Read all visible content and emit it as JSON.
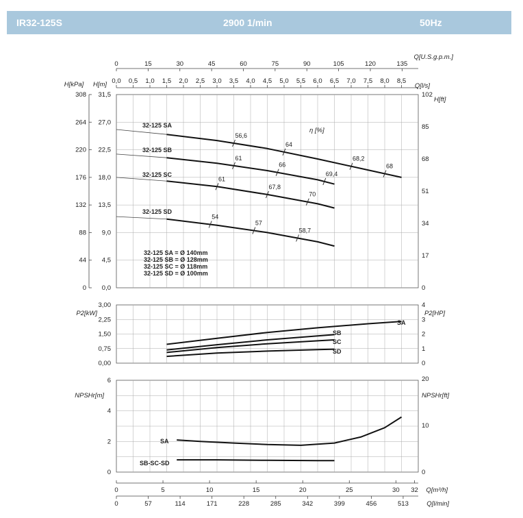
{
  "header": {
    "model": "IR32-125S",
    "speed": "2900 1/min",
    "frequency": "50Hz"
  },
  "chart_data": [
    {
      "type": "line",
      "name": "head",
      "x_unit_label": "Q[l/s]",
      "x_ticks": [
        "0,0",
        "0,5",
        "1,0",
        "1,5",
        "2,0",
        "2,5",
        "3,0",
        "3,5",
        "4,0",
        "4,5",
        "5,0",
        "5,5",
        "6,0",
        "6,5",
        "7,0",
        "7,5",
        "8,0",
        "8,5"
      ],
      "x_ticks_values": [
        0,
        0.5,
        1,
        1.5,
        2,
        2.5,
        3,
        3.5,
        4,
        4.5,
        5,
        5.5,
        6,
        6.5,
        7,
        7.5,
        8,
        8.5
      ],
      "top_unit_label": "Q[U.S.g.p.m.]",
      "top_ticks": [
        "0",
        "15",
        "30",
        "45",
        "60",
        "75",
        "90",
        "105",
        "120",
        "135"
      ],
      "xlim": [
        0,
        9.0
      ],
      "ylabel_left_m": "H[m]",
      "ylabel_left_kpa": "H[kPa]",
      "ylabel_right": "H[ft]",
      "ylim": [
        0,
        31.5
      ],
      "y_ticks_m": [
        "0,0",
        "4,5",
        "9,0",
        "13,5",
        "18,0",
        "22,5",
        "27,0",
        "31,5"
      ],
      "y_ticks_kpa": [
        "0",
        "44",
        "88",
        "132",
        "176",
        "220",
        "264",
        "308"
      ],
      "y_ticks_ft": [
        "0",
        "17",
        "34",
        "51",
        "68",
        "85",
        "102"
      ],
      "efficiency_label": "η [%]",
      "series": [
        {
          "name": "32-125 SA",
          "x": [
            0,
            1.5,
            3,
            4.5,
            6,
            7.5,
            8.5
          ],
          "y": [
            25.8,
            25.0,
            24.0,
            22.7,
            21.0,
            19.2,
            18.0
          ],
          "efficiency": [
            {
              "x": 3.5,
              "label": "56,6"
            },
            {
              "x": 5.0,
              "label": "64"
            },
            {
              "x": 7.0,
              "label": "68,2"
            },
            {
              "x": 8.0,
              "label": "68"
            }
          ]
        },
        {
          "name": "32-125 SB",
          "x": [
            0,
            1.5,
            3,
            4.5,
            6,
            6.5
          ],
          "y": [
            21.8,
            21.2,
            20.3,
            19.1,
            17.6,
            16.9
          ],
          "efficiency": [
            {
              "x": 3.5,
              "label": "61"
            },
            {
              "x": 4.8,
              "label": "66"
            },
            {
              "x": 6.2,
              "label": "69,4"
            }
          ]
        },
        {
          "name": "32-125 SC",
          "x": [
            0,
            1.5,
            3,
            4.5,
            6,
            6.5
          ],
          "y": [
            18.0,
            17.4,
            16.5,
            15.2,
            13.7,
            13.0
          ],
          "efficiency": [
            {
              "x": 3.0,
              "label": "61"
            },
            {
              "x": 4.5,
              "label": "67,8"
            },
            {
              "x": 5.7,
              "label": "70"
            }
          ]
        },
        {
          "name": "32-125 SD",
          "x": [
            0,
            1.5,
            3,
            4.5,
            6,
            6.5
          ],
          "y": [
            11.6,
            11.2,
            10.2,
            9.0,
            7.5,
            6.8
          ],
          "efficiency": [
            {
              "x": 2.8,
              "label": "54"
            },
            {
              "x": 4.1,
              "label": "57"
            },
            {
              "x": 5.4,
              "label": "58,7"
            }
          ]
        }
      ],
      "annotations": [
        "32-125 SA = Ø 140mm",
        "32-125 SB = Ø 128mm",
        "32-125 SC = Ø 118mm",
        "32-125 SD = Ø 100mm"
      ]
    },
    {
      "type": "line",
      "name": "power",
      "ylabel_left": "P2[kW]",
      "ylabel_right": "P2[HP]",
      "ylim": [
        0,
        3
      ],
      "y_ticks_kw": [
        "0,00",
        "0,75",
        "1,50",
        "2,25",
        "3,00"
      ],
      "y_ticks_kw_extra": [
        "0,75",
        "1,50",
        "2,25"
      ],
      "y_ticks_hp": [
        "0",
        "1",
        "2",
        "3",
        "4"
      ],
      "series": [
        {
          "name": "SA",
          "x": [
            1.5,
            3,
            4.5,
            6,
            7.5,
            8.5
          ],
          "y": [
            0.97,
            1.28,
            1.58,
            1.82,
            2.03,
            2.15
          ]
        },
        {
          "name": "SB",
          "x": [
            1.5,
            3,
            4.5,
            6,
            6.5
          ],
          "y": [
            0.68,
            0.95,
            1.2,
            1.4,
            1.47
          ]
        },
        {
          "name": "SC",
          "x": [
            1.5,
            3,
            4.5,
            6,
            6.5
          ],
          "y": [
            0.55,
            0.8,
            1.0,
            1.15,
            1.2
          ]
        },
        {
          "name": "SD",
          "x": [
            1.5,
            3,
            4.5,
            6,
            6.5
          ],
          "y": [
            0.35,
            0.52,
            0.62,
            0.7,
            0.72
          ]
        }
      ]
    },
    {
      "type": "line",
      "name": "npsh",
      "ylabel_left": "NPSHr[m]",
      "ylabel_right": "NPSHr[ft]",
      "ylim": [
        0,
        6
      ],
      "y_ticks_m": [
        "0",
        "2",
        "4",
        "6"
      ],
      "y_ticks_ft": [
        "0",
        "10",
        "20"
      ],
      "series": [
        {
          "name": "SA",
          "x": [
            1.8,
            2.5,
            3.5,
            4.5,
            5.5,
            6.5,
            7.3,
            8.0,
            8.5
          ],
          "y": [
            2.1,
            2.0,
            1.9,
            1.8,
            1.75,
            1.9,
            2.3,
            2.9,
            3.6
          ]
        },
        {
          "name": "SB-SC-SD",
          "x": [
            1.8,
            3.0,
            4.5,
            6.0,
            6.5
          ],
          "y": [
            0.8,
            0.8,
            0.77,
            0.75,
            0.75
          ]
        }
      ],
      "x_unit_label_m3h": "Q[m³/h]",
      "x_ticks_m3h": [
        "0",
        "5",
        "10",
        "15",
        "20",
        "25",
        "30",
        "32"
      ],
      "x_unit_label_lmin": "Q[l/min]",
      "x_ticks_lmin": [
        "0",
        "57",
        "114",
        "171",
        "228",
        "285",
        "342",
        "399",
        "456",
        "513"
      ]
    }
  ]
}
